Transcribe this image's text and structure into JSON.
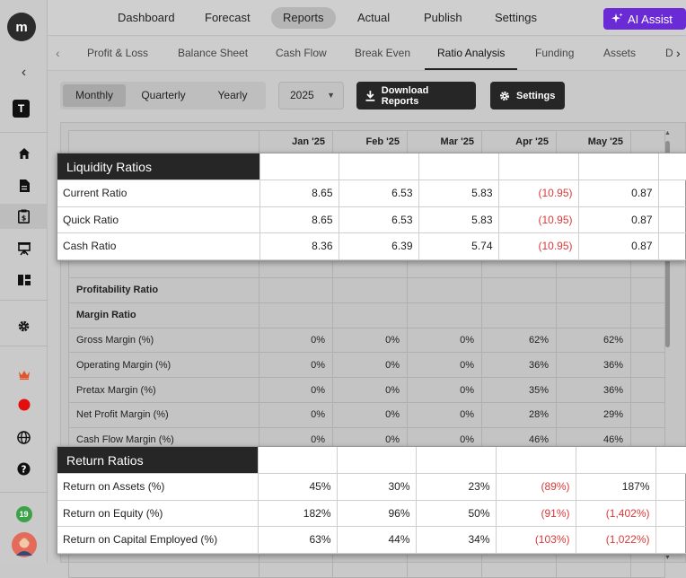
{
  "sidebar": {
    "logo": "m",
    "workspace_badge": "T",
    "notification_count": "19",
    "icons": [
      "home-icon",
      "document-icon",
      "clipboard-dollar-icon",
      "presentation-icon",
      "dashboard-icon",
      "settings-icon",
      "crown-icon",
      "record-icon",
      "globe-icon",
      "help-icon"
    ]
  },
  "topnav": {
    "items": [
      "Dashboard",
      "Forecast",
      "Reports",
      "Actual",
      "Publish",
      "Settings"
    ],
    "active": "Reports",
    "ai_assist": "AI Assist"
  },
  "subnav": {
    "tabs": [
      "Profit & Loss",
      "Balance Sheet",
      "Cash Flow",
      "Break Even",
      "Ratio Analysis",
      "Funding",
      "Assets",
      "D"
    ],
    "active": "Ratio Analysis"
  },
  "toolbar": {
    "periods": [
      "Monthly",
      "Quarterly",
      "Yearly"
    ],
    "active_period": "Monthly",
    "year": "2025",
    "download_label": "Download Reports",
    "settings_label": "Settings"
  },
  "months": [
    "Jan '25",
    "Feb '25",
    "Mar '25",
    "Apr '25",
    "May '25"
  ],
  "background_rows": [
    {
      "label": "",
      "values": [
        "",
        "",
        "",
        "",
        ""
      ]
    },
    {
      "label": "",
      "values": [
        "",
        "",
        "",
        "",
        ""
      ]
    },
    {
      "label": "",
      "values": [
        "",
        "",
        "",
        "",
        ""
      ]
    },
    {
      "label": "",
      "values": [
        "",
        "",
        "",
        "",
        ""
      ]
    },
    {
      "label": "",
      "values": [
        "",
        "",
        "",
        "",
        ""
      ]
    },
    {
      "label": "Profitability Ratio",
      "bold": true,
      "values": [
        "",
        "",
        "",
        "",
        ""
      ]
    },
    {
      "label": "Margin Ratio",
      "bold": true,
      "values": [
        "",
        "",
        "",
        "",
        ""
      ]
    },
    {
      "label": "Gross Margin (%)",
      "values": [
        "0%",
        "0%",
        "0%",
        "62%",
        "62%"
      ]
    },
    {
      "label": "Operating Margin (%)",
      "values": [
        "0%",
        "0%",
        "0%",
        "36%",
        "36%"
      ]
    },
    {
      "label": "Pretax Margin (%)",
      "values": [
        "0%",
        "0%",
        "0%",
        "35%",
        "36%"
      ]
    },
    {
      "label": "Net Profit Margin (%)",
      "values": [
        "0%",
        "0%",
        "0%",
        "28%",
        "29%"
      ]
    },
    {
      "label": "Cash Flow Margin (%)",
      "values": [
        "0%",
        "0%",
        "0%",
        "46%",
        "46%"
      ]
    },
    {
      "label": "",
      "values": [
        "",
        "",
        "",
        "",
        ""
      ]
    },
    {
      "label": "",
      "values": [
        "",
        "",
        "",
        "",
        ""
      ]
    },
    {
      "label": "",
      "values": [
        "",
        "",
        "",
        "",
        ""
      ]
    },
    {
      "label": "",
      "values": [
        "",
        "",
        "",
        "",
        ""
      ]
    },
    {
      "label": "",
      "values": [
        "",
        "",
        "",
        "",
        ""
      ]
    }
  ],
  "liquidity": {
    "title": "Liquidity Ratios",
    "rows": [
      {
        "label": "Current Ratio",
        "values": [
          "8.65",
          "6.53",
          "5.83",
          "(10.95)",
          "0.87"
        ],
        "negative": [
          false,
          false,
          false,
          true,
          false
        ]
      },
      {
        "label": "Quick Ratio",
        "values": [
          "8.65",
          "6.53",
          "5.83",
          "(10.95)",
          "0.87"
        ],
        "negative": [
          false,
          false,
          false,
          true,
          false
        ]
      },
      {
        "label": "Cash Ratio",
        "values": [
          "8.36",
          "6.39",
          "5.74",
          "(10.95)",
          "0.87"
        ],
        "negative": [
          false,
          false,
          false,
          true,
          false
        ]
      }
    ]
  },
  "returns": {
    "title": "Return Ratios",
    "rows": [
      {
        "label": "Return on Assets (%)",
        "values": [
          "45%",
          "30%",
          "23%",
          "(89%)",
          "187%"
        ],
        "negative": [
          false,
          false,
          false,
          true,
          false
        ]
      },
      {
        "label": "Return on Equity (%)",
        "values": [
          "182%",
          "96%",
          "50%",
          "(91%)",
          "(1,402%)"
        ],
        "negative": [
          false,
          false,
          false,
          true,
          true
        ]
      },
      {
        "label": "Return on Capital Employed (%)",
        "values": [
          "63%",
          "44%",
          "34%",
          "(103%)",
          "(1,022%)"
        ],
        "negative": [
          false,
          false,
          false,
          true,
          true
        ]
      }
    ]
  },
  "colors": {
    "accent": "#6a2ad6",
    "negative": "#d83a3a",
    "dark": "#262626"
  }
}
